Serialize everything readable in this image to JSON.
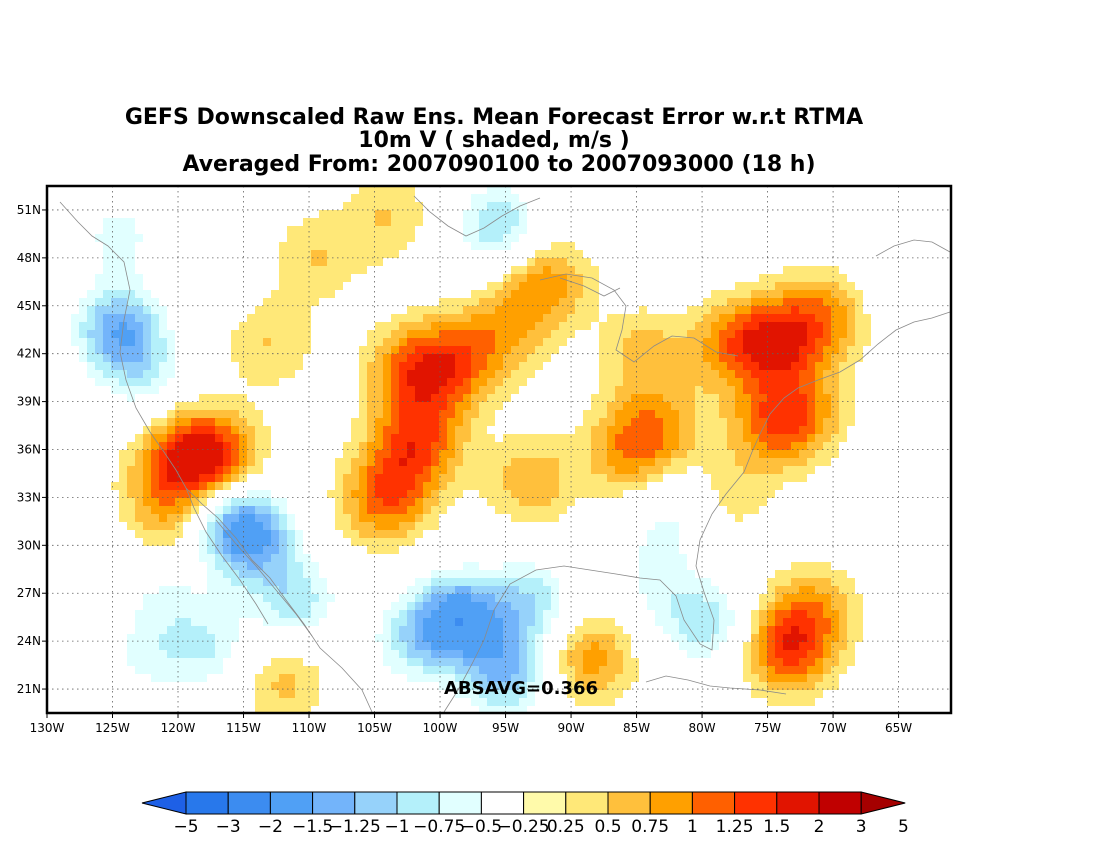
{
  "title": {
    "line1": "GEFS Downscaled Raw Ens. Mean Forecast Error w.r.t RTMA",
    "line2": "10m V ( shaded, m/s )",
    "line3": "Averaged From: 2007090100 to 2007093000 (18 h)"
  },
  "stat_label": "ABSAVG=0.366",
  "chart_data": {
    "type": "heatmap",
    "projection": "lat-lon",
    "xlim": [
      -130,
      -61
    ],
    "ylim": [
      19.5,
      52.5
    ],
    "x_ticks": [
      {
        "value": -130,
        "label": "130W"
      },
      {
        "value": -125,
        "label": "125W"
      },
      {
        "value": -120,
        "label": "120W"
      },
      {
        "value": -115,
        "label": "115W"
      },
      {
        "value": -110,
        "label": "110W"
      },
      {
        "value": -105,
        "label": "105W"
      },
      {
        "value": -100,
        "label": "100W"
      },
      {
        "value": -95,
        "label": "95W"
      },
      {
        "value": -90,
        "label": "90W"
      },
      {
        "value": -85,
        "label": "85W"
      },
      {
        "value": -80,
        "label": "80W"
      },
      {
        "value": -75,
        "label": "75W"
      },
      {
        "value": -70,
        "label": "70W"
      },
      {
        "value": -65,
        "label": "65W"
      }
    ],
    "y_ticks": [
      {
        "value": 21,
        "label": "21N"
      },
      {
        "value": 24,
        "label": "24N"
      },
      {
        "value": 27,
        "label": "27N"
      },
      {
        "value": 30,
        "label": "30N"
      },
      {
        "value": 33,
        "label": "33N"
      },
      {
        "value": 36,
        "label": "36N"
      },
      {
        "value": 39,
        "label": "39N"
      },
      {
        "value": 42,
        "label": "42N"
      },
      {
        "value": 45,
        "label": "45N"
      },
      {
        "value": 48,
        "label": "48N"
      },
      {
        "value": 51,
        "label": "51N"
      }
    ],
    "grid": true,
    "colorbar": {
      "levels": [
        "-5",
        "-3",
        "-2",
        "-1.5",
        "-1.25",
        "-1",
        "-0.75",
        "-0.5",
        "-0.25",
        "0.25",
        "0.5",
        "0.75",
        "1",
        "1.25",
        "1.5",
        "2",
        "3",
        "5"
      ],
      "colors": [
        "#1e60e6",
        "#2878eb",
        "#3c8cf0",
        "#50a0f5",
        "#73b4fa",
        "#96d2fa",
        "#b4f0fa",
        "#e1ffff",
        "#ffffff",
        "#fffaaa",
        "#ffe878",
        "#ffc03c",
        "#ffa000",
        "#ff6000",
        "#ff3200",
        "#e11400",
        "#c00000",
        "#a50000"
      ]
    },
    "features": [
      {
        "lon": -124.5,
        "lat": 43.5,
        "value": -1.4
      },
      {
        "lon": -122.5,
        "lat": 40.5,
        "value": -0.6
      },
      {
        "lon": -124.5,
        "lat": 49.5,
        "value": -0.6
      },
      {
        "lon": -117.0,
        "lat": 35.2,
        "value": 1.3
      },
      {
        "lon": -119.5,
        "lat": 36.0,
        "value": 0.9
      },
      {
        "lon": -121.0,
        "lat": 33.5,
        "value": 0.6
      },
      {
        "lon": -120.0,
        "lat": 31.0,
        "value": 0.5
      },
      {
        "lon": -114.5,
        "lat": 30.5,
        "value": -1.4
      },
      {
        "lon": -116.5,
        "lat": 32.0,
        "value": -0.9
      },
      {
        "lon": -111.0,
        "lat": 26.5,
        "value": -0.9
      },
      {
        "lon": -121.0,
        "lat": 27.0,
        "value": -0.5
      },
      {
        "lon": -122.5,
        "lat": 23.0,
        "value": -0.5
      },
      {
        "lon": -117.5,
        "lat": 23.5,
        "value": -0.7
      },
      {
        "lon": -112.0,
        "lat": 21.5,
        "value": 0.6
      },
      {
        "lon": -102.0,
        "lat": 41.0,
        "value": 1.1
      },
      {
        "lon": -101.5,
        "lat": 37.0,
        "value": 1.0
      },
      {
        "lon": -103.0,
        "lat": 34.5,
        "value": 0.7
      },
      {
        "lon": -104.5,
        "lat": 32.5,
        "value": 0.8
      },
      {
        "lon": -98.5,
        "lat": 41.5,
        "value": 0.9
      },
      {
        "lon": -95.0,
        "lat": 43.5,
        "value": 0.6
      },
      {
        "lon": -92.0,
        "lat": 46.5,
        "value": 0.9
      },
      {
        "lon": -93.0,
        "lat": 34.0,
        "value": 0.7
      },
      {
        "lon": -113.0,
        "lat": 42.5,
        "value": 0.5
      },
      {
        "lon": -109.5,
        "lat": 48.0,
        "value": 0.5
      },
      {
        "lon": -104.0,
        "lat": 50.5,
        "value": 0.5
      },
      {
        "lon": -95.5,
        "lat": 50.0,
        "value": -1.0
      },
      {
        "lon": -77.5,
        "lat": 42.5,
        "value": 0.9
      },
      {
        "lon": -74.0,
        "lat": 42.8,
        "value": 1.2
      },
      {
        "lon": -70.5,
        "lat": 44.5,
        "value": 0.8
      },
      {
        "lon": -74.5,
        "lat": 37.5,
        "value": 1.0
      },
      {
        "lon": -72.0,
        "lat": 38.5,
        "value": 0.6
      },
      {
        "lon": -85.5,
        "lat": 36.0,
        "value": 0.9
      },
      {
        "lon": -83.0,
        "lat": 37.5,
        "value": 0.6
      },
      {
        "lon": -84.5,
        "lat": 42.0,
        "value": 0.6
      },
      {
        "lon": -78.5,
        "lat": 33.0,
        "value": 0.5
      },
      {
        "lon": -98.5,
        "lat": 25.5,
        "value": -1.6
      },
      {
        "lon": -95.0,
        "lat": 22.0,
        "value": -1.2
      },
      {
        "lon": -93.0,
        "lat": 26.5,
        "value": -0.9
      },
      {
        "lon": -102.0,
        "lat": 24.0,
        "value": -0.8
      },
      {
        "lon": -79.5,
        "lat": 25.0,
        "value": -0.9
      },
      {
        "lon": -83.5,
        "lat": 27.0,
        "value": -0.4
      },
      {
        "lon": -81.5,
        "lat": 32.5,
        "value": -0.5
      },
      {
        "lon": -73.5,
        "lat": 23.5,
        "value": 1.3
      },
      {
        "lon": -71.5,
        "lat": 26.0,
        "value": 0.7
      },
      {
        "lon": -88.5,
        "lat": 23.0,
        "value": 0.9
      },
      {
        "lon": -65.0,
        "lat": 47.0,
        "value": -0.4
      },
      {
        "lon": -83.5,
        "lat": 30.0,
        "value": -0.3
      }
    ]
  }
}
